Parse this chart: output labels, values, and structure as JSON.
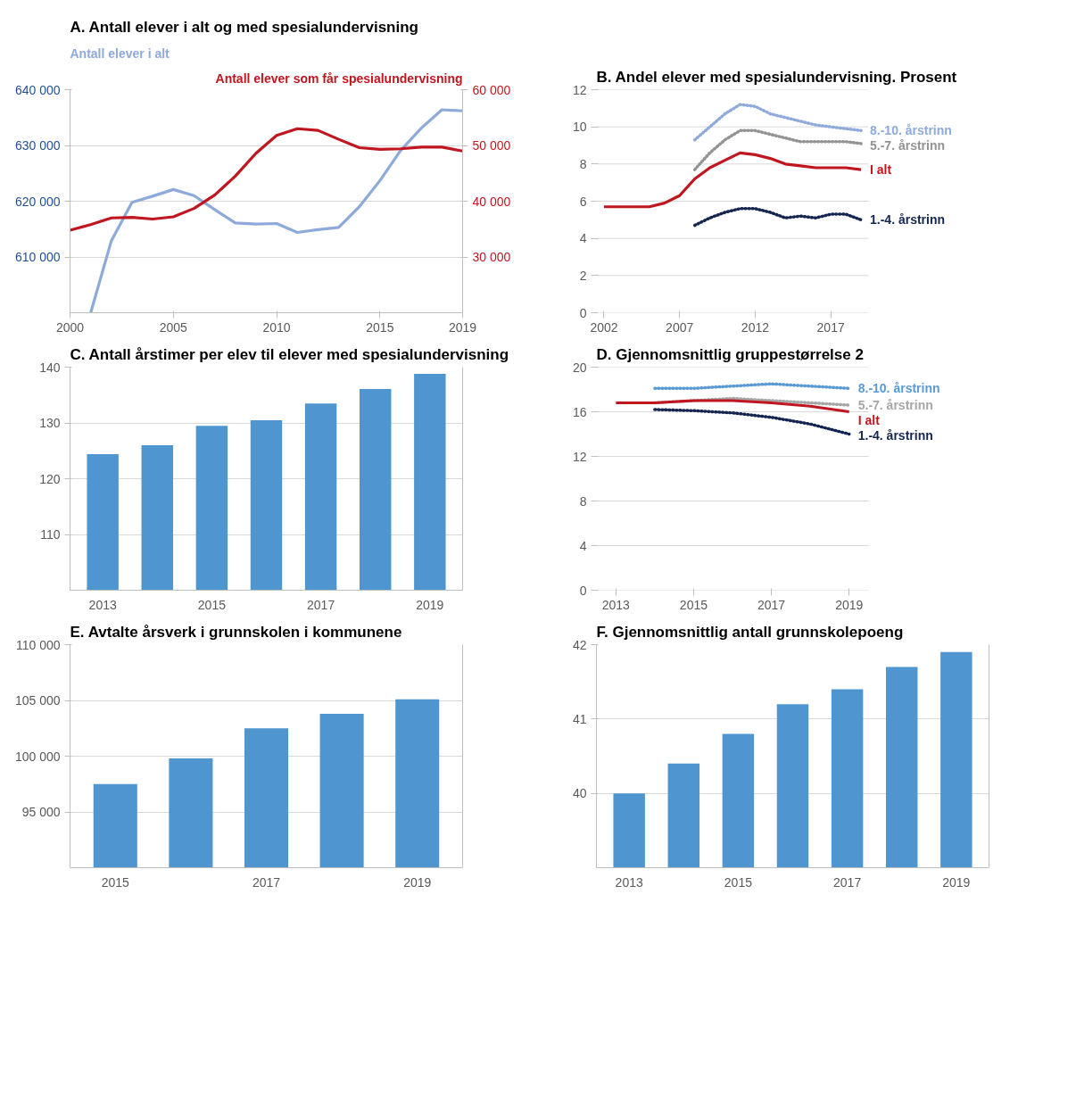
{
  "chart_data": [
    {
      "type": "line",
      "title": "A. Antall elever i alt og med spesialundervisning",
      "ylabel": "Antall elever i alt",
      "y2label": "Antall elever som får spesialundervisning",
      "x": [
        2000,
        2001,
        2002,
        2003,
        2004,
        2005,
        2006,
        2007,
        2008,
        2009,
        2010,
        2011,
        2012,
        2013,
        2014,
        2015,
        2016,
        2017,
        2018,
        2019
      ],
      "xlim": [
        2000,
        2019
      ],
      "xticks": [
        2000,
        2005,
        2010,
        2015,
        2019
      ],
      "ylim": [
        600000,
        640000
      ],
      "yticks": [
        {
          "value": 610000,
          "label": "610 000"
        },
        {
          "value": 620000,
          "label": "620 000"
        },
        {
          "value": 630000,
          "label": "630 000"
        },
        {
          "value": 640000,
          "label": "640 000"
        }
      ],
      "y2lim": [
        20000,
        60000
      ],
      "y2ticks": [
        {
          "value": 30000,
          "label": "30 000"
        },
        {
          "value": 40000,
          "label": "40 000"
        },
        {
          "value": 50000,
          "label": "50 000"
        },
        {
          "value": 60000,
          "label": "60 000"
        }
      ],
      "grid": "y",
      "series": [
        {
          "color": "#8eaadb",
          "values": [
            null,
            600000,
            612900,
            619800,
            620900,
            622100,
            621000,
            618500,
            616100,
            615900,
            616000,
            614400,
            614900,
            615300,
            619000,
            623700,
            629100,
            633100,
            636400,
            636200
          ]
        },
        {
          "color": "#c0161f",
          "axis": "y2",
          "values": [
            34800,
            35800,
            37000,
            37100,
            36800,
            37200,
            38700,
            41100,
            44500,
            48600,
            51800,
            53000,
            52700,
            51100,
            49600,
            49300,
            49400,
            49700,
            49700,
            49000
          ]
        }
      ]
    },
    {
      "type": "line",
      "title": "B. Andel elever med spesialundervisning. Prosent",
      "xlim": [
        2001.5,
        2019.5
      ],
      "xticks": [
        2002,
        2007,
        2012,
        2017
      ],
      "ylim": [
        0,
        12
      ],
      "yticks": [
        0,
        2,
        4,
        6,
        8,
        10,
        12
      ],
      "grid": "y",
      "series": [
        {
          "name": "8.-10. årstrinn",
          "color": "#8eaadb",
          "line_style": "dotted",
          "x": [
            2008,
            2009,
            2010,
            2011,
            2012,
            2013,
            2014,
            2015,
            2016,
            2017,
            2018,
            2019
          ],
          "values": [
            9.3,
            10.0,
            10.7,
            11.2,
            11.1,
            10.7,
            10.5,
            10.3,
            10.1,
            10.0,
            9.9,
            9.8
          ]
        },
        {
          "name": "5.-7. årstrinn",
          "color": "#939393",
          "line_style": "dotted",
          "x": [
            2008,
            2009,
            2010,
            2011,
            2012,
            2013,
            2014,
            2015,
            2016,
            2017,
            2018,
            2019
          ],
          "values": [
            7.7,
            8.6,
            9.3,
            9.8,
            9.8,
            9.6,
            9.4,
            9.2,
            9.2,
            9.2,
            9.2,
            9.1
          ]
        },
        {
          "name": "I alt",
          "color": "#c0161f",
          "line_style": "solid",
          "x": [
            2002,
            2003,
            2004,
            2005,
            2006,
            2007,
            2008,
            2009,
            2010,
            2011,
            2012,
            2013,
            2014,
            2015,
            2016,
            2017,
            2018,
            2019
          ],
          "values": [
            5.7,
            5.7,
            5.7,
            5.7,
            5.9,
            6.3,
            7.2,
            7.8,
            8.2,
            8.6,
            8.5,
            8.3,
            8.0,
            7.9,
            7.8,
            7.8,
            7.8,
            7.7
          ]
        },
        {
          "name": "1.-4. årstrinn",
          "color": "#14264f",
          "line_style": "dotted",
          "x": [
            2008,
            2009,
            2010,
            2011,
            2012,
            2013,
            2014,
            2015,
            2016,
            2017,
            2018,
            2019
          ],
          "values": [
            4.7,
            5.1,
            5.4,
            5.6,
            5.6,
            5.4,
            5.1,
            5.2,
            5.1,
            5.3,
            5.3,
            5.0
          ]
        }
      ]
    },
    {
      "type": "bar",
      "title": "C. Antall årstimer per elev til elever med spesialundervisning",
      "categories": [
        "2013",
        null,
        "2015",
        null,
        "2017",
        null,
        "2019"
      ],
      "values": [
        124.4,
        126.0,
        129.5,
        130.5,
        133.5,
        136.1,
        138.8
      ],
      "color": "#4f96d0",
      "ylim": [
        100,
        140
      ],
      "yticks": [
        110,
        120,
        130,
        140
      ],
      "grid": "y"
    },
    {
      "type": "line",
      "title": "D. Gjennomsnittlig gruppestørrelse 2",
      "xlim": [
        2012.5,
        2019.5
      ],
      "xticks": [
        2013,
        2015,
        2017,
        2019
      ],
      "ylim": [
        0,
        20
      ],
      "yticks": [
        0,
        4,
        8,
        12,
        16,
        20
      ],
      "grid": "y",
      "series": [
        {
          "name": "8.-10. årstrinn",
          "color": "#5b9bd5",
          "line_style": "dotted",
          "x": [
            2014,
            2015,
            2016,
            2017,
            2018,
            2019
          ],
          "values": [
            18.1,
            18.1,
            18.3,
            18.5,
            18.3,
            18.1
          ]
        },
        {
          "name": "5.-7. årstrinn",
          "color": "#a6a6a6",
          "line_style": "dotted",
          "x": [
            2014,
            2015,
            2016,
            2017,
            2018,
            2019
          ],
          "values": [
            16.8,
            17.0,
            17.2,
            17.0,
            16.8,
            16.6
          ]
        },
        {
          "name": "I alt",
          "color": "#c0161f",
          "line_style": "solid",
          "x": [
            2013,
            2014,
            2015,
            2016,
            2017,
            2018,
            2019
          ],
          "values": [
            16.8,
            16.8,
            17.0,
            17.0,
            16.8,
            16.5,
            16.0
          ]
        },
        {
          "name": "1.-4. årstrinn",
          "color": "#14264f",
          "line_style": "dotted",
          "x": [
            2014,
            2015,
            2016,
            2017,
            2018,
            2019
          ],
          "values": [
            16.2,
            16.1,
            15.9,
            15.5,
            14.9,
            14.0
          ]
        }
      ]
    },
    {
      "type": "bar",
      "title": "E. Avtalte årsverk i grunnskolen i kommunene",
      "categories": [
        "2015",
        null,
        "2017",
        null,
        "2019"
      ],
      "values": [
        97500,
        99800,
        102500,
        103800,
        105100
      ],
      "color": "#4f96d0",
      "ylim": [
        90000,
        110000
      ],
      "yticks": [
        {
          "value": 95000,
          "label": "95 000"
        },
        {
          "value": 100000,
          "label": "100 000"
        },
        {
          "value": 105000,
          "label": "105 000"
        },
        {
          "value": 110000,
          "label": "110 000"
        }
      ],
      "grid": "y"
    },
    {
      "type": "bar",
      "title": "F. Gjennomsnittlig antall grunnskolepoeng",
      "categories": [
        "2013",
        null,
        "2015",
        null,
        "2017",
        null,
        "2019"
      ],
      "values": [
        40.0,
        40.4,
        40.8,
        41.2,
        41.4,
        41.7,
        41.9
      ],
      "color": "#4f96d0",
      "ylim": [
        39,
        42
      ],
      "yticks": [
        40,
        41,
        42
      ],
      "grid": "y"
    }
  ]
}
